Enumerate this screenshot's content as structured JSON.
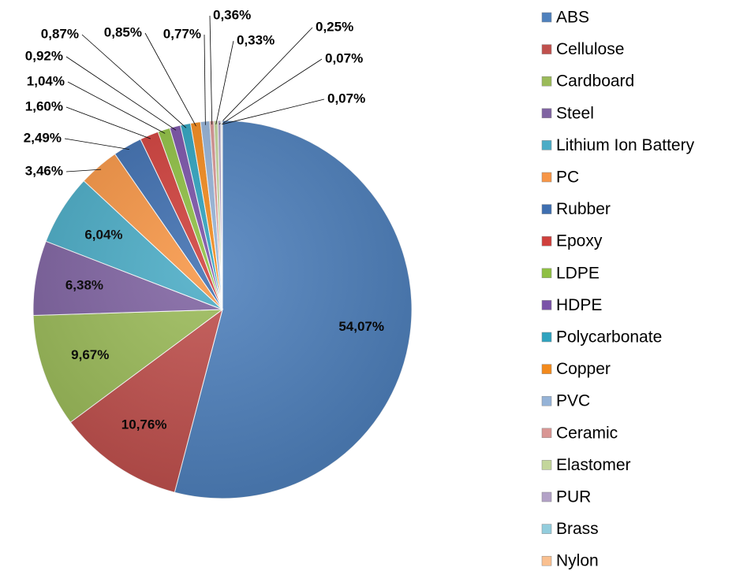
{
  "chart_data": {
    "type": "pie",
    "categories": [
      "ABS",
      "Cellulose",
      "Cardboard",
      "Steel",
      "Lithium Ion Battery",
      "PC",
      "Rubber",
      "Epoxy",
      "LDPE",
      "HDPE",
      "Polycarbonate",
      "Copper",
      "PVC",
      "Ceramic",
      "Elastomer",
      "PUR",
      "Brass",
      "Nylon"
    ],
    "values": [
      54.07,
      10.76,
      9.67,
      6.38,
      6.04,
      3.46,
      2.49,
      1.6,
      1.04,
      0.92,
      0.87,
      0.85,
      0.77,
      0.36,
      0.33,
      0.25,
      0.07,
      0.07
    ],
    "value_labels": [
      "54,07%",
      "10,76%",
      "9,67%",
      "6,38%",
      "6,04%",
      "3,46%",
      "2,49%",
      "1,60%",
      "1,04%",
      "0,92%",
      "0,87%",
      "0,85%",
      "0,77%",
      "0,36%",
      "0,33%",
      "0,25%",
      "0,07%",
      "0,07%"
    ],
    "colors": [
      "#4f81bd",
      "#c0504d",
      "#9bbb59",
      "#8064a2",
      "#4bacc6",
      "#f79646",
      "#3f6fb0",
      "#d0403c",
      "#8fc043",
      "#7a52a8",
      "#2fa3bf",
      "#f38a1c",
      "#95b3d7",
      "#d99694",
      "#c3d69b",
      "#b3a2c7",
      "#93cddd",
      "#fac090"
    ],
    "legend": "right"
  }
}
